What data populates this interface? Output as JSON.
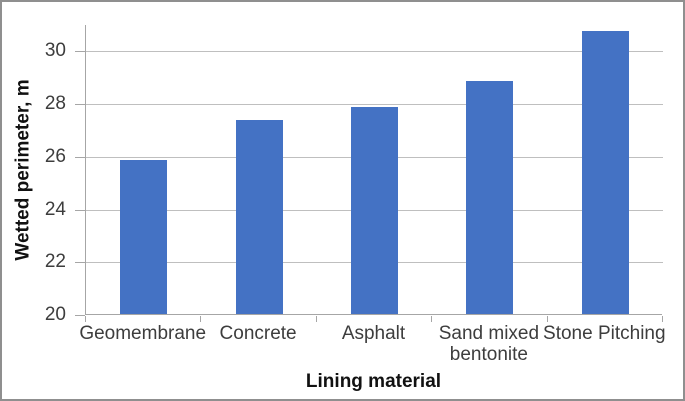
{
  "chart_data": {
    "type": "bar",
    "title": "",
    "xlabel": "Lining material",
    "ylabel": "Wetted perimeter, m",
    "categories": [
      "Geomembrane",
      "Concrete",
      "Asphalt",
      "Sand mixed bentonite",
      "Stone Pitching"
    ],
    "values": [
      25.85,
      27.35,
      27.85,
      28.85,
      30.75
    ],
    "ylim": [
      20,
      31
    ],
    "yticks": [
      20,
      22,
      24,
      26,
      28,
      30
    ],
    "grid": true,
    "legend_position": "none",
    "bar_color": "#4472C4",
    "gridline_color": "#BFBFBF",
    "axis_color": "#A6A6A6",
    "tick_label_color": "#3d3d3d",
    "title_color": "#111111"
  }
}
